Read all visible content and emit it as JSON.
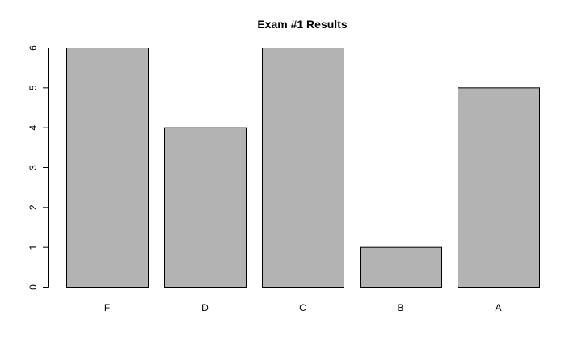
{
  "chart_data": {
    "type": "bar",
    "title": "Exam #1 Results",
    "xlabel": "",
    "ylabel": "",
    "categories": [
      "F",
      "D",
      "C",
      "B",
      "A"
    ],
    "values": [
      6,
      4,
      6,
      1,
      5
    ],
    "ylim": [
      0,
      6
    ],
    "yticks": [
      0,
      1,
      2,
      3,
      4,
      5,
      6
    ],
    "grid": false,
    "legend": "none",
    "bar_color": "#b3b3b3",
    "bar_border_color": "#000000"
  }
}
